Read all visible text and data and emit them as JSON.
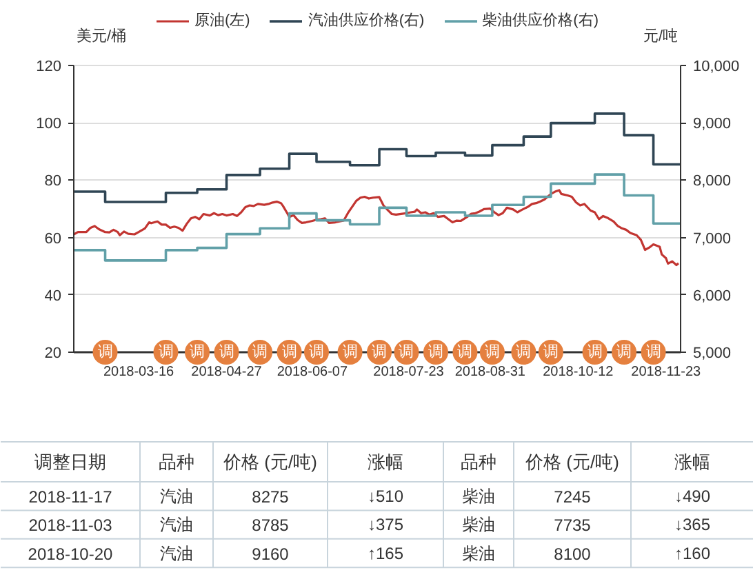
{
  "chart_data": [
    {
      "type": "line",
      "ylabel": "美元/桶",
      "y2label": "元/吨",
      "legend": "top",
      "grid": "y",
      "xlim": [
        "2018-02-13",
        "2018-11-30"
      ],
      "xticks": [
        "2018-03-16",
        "2018-04-27",
        "2018-06-07",
        "2018-07-23",
        "2018-08-31",
        "2018-10-12",
        "2018-11-23"
      ],
      "ylim": [
        20,
        120
      ],
      "yticks": [
        20,
        40,
        60,
        80,
        100,
        120
      ],
      "y2lim": [
        5000,
        10000
      ],
      "y2ticks": [
        {
          "value": 5000,
          "label": "5,000"
        },
        {
          "value": 6000,
          "label": "6,000"
        },
        {
          "value": 7000,
          "label": "7,000"
        },
        {
          "value": 8000,
          "label": "8,000"
        },
        {
          "value": 9000,
          "label": "9,000"
        },
        {
          "value": 10000,
          "label": "10,000"
        }
      ],
      "series": [
        {
          "name": "原油(左)",
          "type": "line",
          "color": "#c23531",
          "x": [
            "2018-02-13",
            "2018-02-15",
            "2018-02-19",
            "2018-02-21",
            "2018-02-23",
            "2018-02-25",
            "2018-02-28",
            "2018-03-02",
            "2018-03-04",
            "2018-03-06",
            "2018-03-07",
            "2018-03-09",
            "2018-03-11",
            "2018-03-14",
            "2018-03-16",
            "2018-03-19",
            "2018-03-21",
            "2018-03-22",
            "2018-03-25",
            "2018-03-27",
            "2018-03-29",
            "2018-03-31",
            "2018-04-02",
            "2018-04-04",
            "2018-04-06",
            "2018-04-08",
            "2018-04-10",
            "2018-04-12",
            "2018-04-14",
            "2018-04-16",
            "2018-04-19",
            "2018-04-21",
            "2018-04-23",
            "2018-04-25",
            "2018-04-27",
            "2018-04-30",
            "2018-05-02",
            "2018-05-04",
            "2018-05-06",
            "2018-05-08",
            "2018-05-10",
            "2018-05-12",
            "2018-05-15",
            "2018-05-17",
            "2018-05-19",
            "2018-05-21",
            "2018-05-23",
            "2018-05-24",
            "2018-05-26",
            "2018-05-27",
            "2018-05-29",
            "2018-05-31",
            "2018-06-02",
            "2018-06-04",
            "2018-06-07",
            "2018-06-09",
            "2018-06-11",
            "2018-06-13",
            "2018-06-15",
            "2018-06-18",
            "2018-06-20",
            "2018-06-22",
            "2018-06-24",
            "2018-06-25",
            "2018-06-28",
            "2018-06-30",
            "2018-07-02",
            "2018-07-04",
            "2018-07-06",
            "2018-07-09",
            "2018-07-11",
            "2018-07-13",
            "2018-07-15",
            "2018-07-17",
            "2018-07-20",
            "2018-07-22",
            "2018-07-24",
            "2018-07-26",
            "2018-07-27",
            "2018-07-29",
            "2018-07-31",
            "2018-08-02",
            "2018-08-04",
            "2018-08-06",
            "2018-08-09",
            "2018-08-11",
            "2018-08-13",
            "2018-08-15",
            "2018-08-17",
            "2018-08-20",
            "2018-08-22",
            "2018-08-24",
            "2018-08-26",
            "2018-08-28",
            "2018-08-31",
            "2018-09-02",
            "2018-09-04",
            "2018-09-06",
            "2018-09-08",
            "2018-09-11",
            "2018-09-13",
            "2018-09-15",
            "2018-09-18",
            "2018-09-20",
            "2018-09-22",
            "2018-09-24",
            "2018-09-26",
            "2018-09-29",
            "2018-10-01",
            "2018-10-03",
            "2018-10-04",
            "2018-10-07",
            "2018-10-09",
            "2018-10-11",
            "2018-10-13",
            "2018-10-15",
            "2018-10-18",
            "2018-10-20",
            "2018-10-22",
            "2018-10-24",
            "2018-10-26",
            "2018-10-29",
            "2018-10-31",
            "2018-11-02",
            "2018-11-04",
            "2018-11-06",
            "2018-11-09",
            "2018-11-11",
            "2018-11-13",
            "2018-11-15",
            "2018-11-17",
            "2018-11-20",
            "2018-11-21",
            "2018-11-23",
            "2018-11-24",
            "2018-11-26",
            "2018-11-28",
            "2018-11-29"
          ],
          "values": [
            61.1,
            61.9,
            61.9,
            63.4,
            64.0,
            62.9,
            61.9,
            61.8,
            62.7,
            61.9,
            60.8,
            62.1,
            61.3,
            61.1,
            61.9,
            63.2,
            65.3,
            65.0,
            65.6,
            64.5,
            64.5,
            63.4,
            63.8,
            63.4,
            62.4,
            64.8,
            66.7,
            67.2,
            66.4,
            68.2,
            67.7,
            68.5,
            67.8,
            68.2,
            67.7,
            68.2,
            67.5,
            68.8,
            70.6,
            71.2,
            71.0,
            71.7,
            71.4,
            71.7,
            72.2,
            72.5,
            72.0,
            71.0,
            68.5,
            67.2,
            67.8,
            66.1,
            65.1,
            65.3,
            65.8,
            66.2,
            66.4,
            66.7,
            65.1,
            65.3,
            65.6,
            65.9,
            68.5,
            69.6,
            72.8,
            73.9,
            74.2,
            73.6,
            73.9,
            74.1,
            71.2,
            69.6,
            68.2,
            68.0,
            68.3,
            68.5,
            68.8,
            69.0,
            69.8,
            68.5,
            68.8,
            68.0,
            68.5,
            67.2,
            67.5,
            66.4,
            65.3,
            65.9,
            65.8,
            67.2,
            68.3,
            68.5,
            69.1,
            69.9,
            70.1,
            68.8,
            67.8,
            68.5,
            70.4,
            69.8,
            68.8,
            69.6,
            70.7,
            71.7,
            72.0,
            72.6,
            73.3,
            75.2,
            76.0,
            76.5,
            75.2,
            74.7,
            74.2,
            72.3,
            71.2,
            71.7,
            69.4,
            68.8,
            66.4,
            67.5,
            66.9,
            65.6,
            64.0,
            63.2,
            62.7,
            61.6,
            60.8,
            59.2,
            55.7,
            56.5,
            57.6,
            56.8,
            54.1,
            52.8,
            50.9,
            51.7,
            50.4,
            51.0
          ]
        },
        {
          "name": "汽油供应价格(右)",
          "type": "step",
          "axis": "y2",
          "color": "#2f4554",
          "x": [
            "2018-02-13",
            "2018-02-28",
            "2018-03-29",
            "2018-04-13",
            "2018-04-27",
            "2018-05-13",
            "2018-05-27",
            "2018-06-09",
            "2018-06-25",
            "2018-07-09",
            "2018-07-22",
            "2018-08-05",
            "2018-08-19",
            "2018-09-01",
            "2018-09-16",
            "2018-09-29",
            "2018-10-20",
            "2018-11-03",
            "2018-11-17",
            "2018-11-30"
          ],
          "values": [
            7800,
            7620,
            7780,
            7840,
            8090,
            8200,
            8460,
            8320,
            8260,
            8540,
            8420,
            8480,
            8430,
            8610,
            8760,
            8995,
            9160,
            8785,
            8275,
            8275
          ]
        },
        {
          "name": "柴油供应价格(右)",
          "type": "step",
          "axis": "y2",
          "color": "#61a0a8",
          "x": [
            "2018-02-13",
            "2018-02-28",
            "2018-03-29",
            "2018-04-13",
            "2018-04-27",
            "2018-05-13",
            "2018-05-27",
            "2018-06-09",
            "2018-06-25",
            "2018-07-09",
            "2018-07-22",
            "2018-08-05",
            "2018-08-19",
            "2018-09-01",
            "2018-09-16",
            "2018-09-29",
            "2018-10-20",
            "2018-11-03",
            "2018-11-17",
            "2018-11-30"
          ],
          "values": [
            6780,
            6600,
            6780,
            6820,
            7060,
            7160,
            7420,
            7300,
            7230,
            7520,
            7380,
            7440,
            7380,
            7570,
            7710,
            7940,
            8100,
            7735,
            7245,
            7245
          ]
        },
        {
          "type": "scatter",
          "marker": "circle",
          "color": "#e5803f",
          "x": [
            "2018-02-28",
            "2018-03-29",
            "2018-04-13",
            "2018-04-27",
            "2018-05-13",
            "2018-05-27",
            "2018-06-09",
            "2018-06-25",
            "2018-07-09",
            "2018-07-22",
            "2018-08-05",
            "2018-08-19",
            "2018-09-01",
            "2018-09-16",
            "2018-09-29",
            "2018-10-20",
            "2018-11-03",
            "2018-11-17"
          ],
          "values": [
            20,
            20,
            20,
            20,
            20,
            20,
            20,
            20,
            20,
            20,
            20,
            20,
            20,
            20,
            20,
            20,
            20,
            20
          ],
          "value_labels": [
            "调",
            "调",
            "调",
            "调",
            "调",
            "调",
            "调",
            "调",
            "调",
            "调",
            "调",
            "调",
            "调",
            "调",
            "调",
            "调",
            "调",
            "调"
          ]
        }
      ]
    },
    {
      "type": "other",
      "categories": [
        "调整日期",
        "品种",
        "价格 (元/吨)",
        "涨幅",
        "品种",
        "价格 (元/吨)",
        "涨幅"
      ],
      "annotations": [
        "2018-11-17",
        "汽油",
        "8275",
        "↓510",
        "柴油",
        "7245",
        "↓490",
        "2018-11-03",
        "汽油",
        "8785",
        "↓375",
        "柴油",
        "7735",
        "↓365",
        "2018-10-20",
        "汽油",
        "9160",
        "↑165",
        "柴油",
        "8100",
        "↑160"
      ]
    }
  ]
}
